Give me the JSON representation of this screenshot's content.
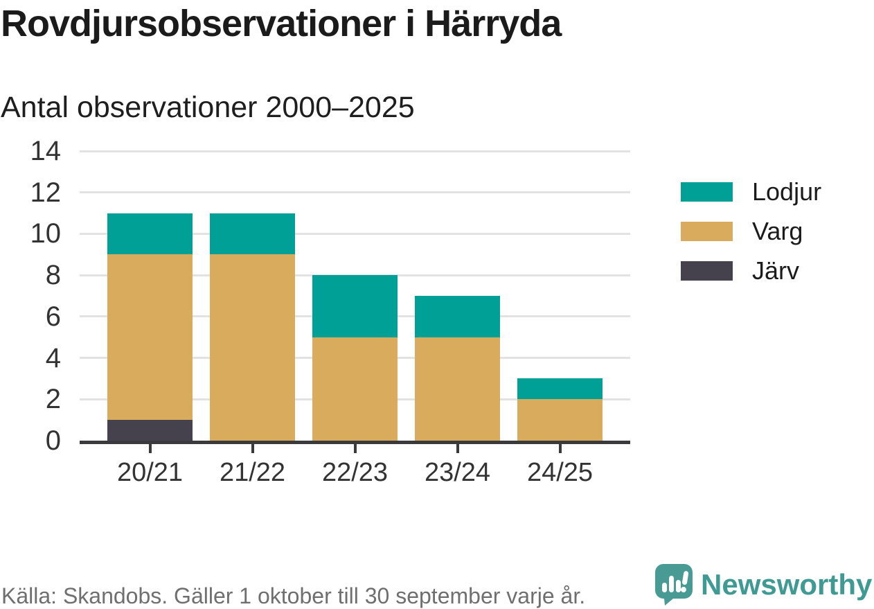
{
  "header": {
    "title": "Rovdjursobservationer i Härryda",
    "subtitle": "Antal observationer 2000–2025"
  },
  "chart_data": {
    "type": "bar",
    "stacked": true,
    "title": "Rovdjursobservationer i Härryda",
    "subtitle": "Antal observationer 2000–2025",
    "categories": [
      "20/21",
      "21/22",
      "22/23",
      "23/24",
      "24/25"
    ],
    "series": [
      {
        "name": "Lodjur",
        "color": "#00A096",
        "values": [
          2,
          2,
          3,
          2,
          1
        ]
      },
      {
        "name": "Varg",
        "color": "#D8AB5D",
        "values": [
          8,
          9,
          5,
          5,
          2
        ]
      },
      {
        "name": "Järv",
        "color": "#45424D",
        "values": [
          1,
          0,
          0,
          0,
          0
        ]
      }
    ],
    "stack_order_bottom_to_top": [
      "Järv",
      "Varg",
      "Lodjur"
    ],
    "totals": [
      11,
      11,
      8,
      7,
      3
    ],
    "xlabel": "",
    "ylabel": "",
    "ylim": [
      0,
      14
    ],
    "yticks": [
      0,
      2,
      4,
      6,
      8,
      10,
      12,
      14
    ],
    "grid": true,
    "legend_position": "right"
  },
  "colors": {
    "lodjur_teal": "#00A096",
    "varg_tan": "#D8AB5D",
    "jarv_dark": "#45424D",
    "axis": "#3A3A3C",
    "gridline": "#E2E2E2",
    "title_text": "#1B1B1B",
    "tick_text": "#333333",
    "source_text": "#6F6F6F",
    "brand_teal": "#3E9A92"
  },
  "footer": {
    "source": "Källa: Skandobs. Gäller 1 oktober till 30 september varje år.",
    "brand": "Newsworthy"
  }
}
